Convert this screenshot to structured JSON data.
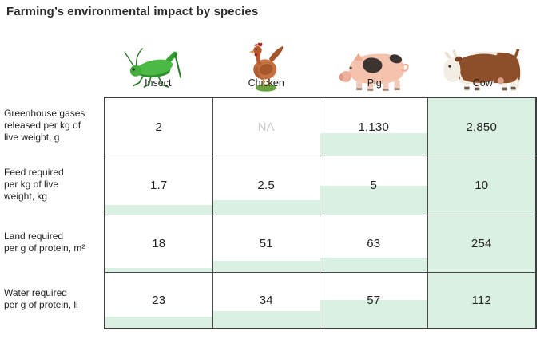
{
  "title": "Farming’s environmental impact by species",
  "columns": [
    {
      "label": "Insect",
      "icon": "grasshopper-icon"
    },
    {
      "label": "Chicken",
      "icon": "hen-icon"
    },
    {
      "label": "Pig",
      "icon": "pig-icon"
    },
    {
      "label": "Cow",
      "icon": "cow-icon"
    }
  ],
  "rows": [
    {
      "label": "Greenhouse gases\nreleased per kg of\nlive weight, g",
      "cells": [
        "2",
        "NA",
        "1,130",
        "2,850"
      ]
    },
    {
      "label": "Feed required\nper kg of live\nweight, kg",
      "cells": [
        "1.7",
        "2.5",
        "5",
        "10"
      ]
    },
    {
      "label": "Land required\nper g of protein, m²",
      "cells": [
        "18",
        "51",
        "63",
        "254"
      ]
    },
    {
      "label": "Water required\nper g of protein, li",
      "cells": [
        "23",
        "34",
        "57",
        "112"
      ]
    }
  ],
  "colors": {
    "cell_fill_green": "#d9f0e3",
    "grid_line": "#4a4a4a",
    "outer_border": "#3e3e3e",
    "na_text": "#c7cac8",
    "text": "#242424"
  },
  "chart_data": {
    "type": "table",
    "title": "Farming’s environmental impact by species",
    "columns": [
      "Insect",
      "Chicken",
      "Pig",
      "Cow"
    ],
    "rows": [
      {
        "metric": "Greenhouse gases released per kg of live weight, g",
        "values": [
          2,
          null,
          1130,
          2850
        ]
      },
      {
        "metric": "Feed required per kg of live weight, kg",
        "values": [
          1.7,
          2.5,
          5,
          10
        ]
      },
      {
        "metric": "Land required per g of protein, m²",
        "values": [
          18,
          51,
          63,
          254
        ]
      },
      {
        "metric": "Water required per g of protein, li",
        "values": [
          23,
          34,
          57,
          112
        ]
      }
    ],
    "na_cells": [
      [
        0,
        1
      ]
    ],
    "cell_shading": "light-green bar anchored to cell bottom, height proportional to value divided by row maximum; row-maximum cells fully shaded",
    "legend": "none",
    "grid": "on"
  }
}
